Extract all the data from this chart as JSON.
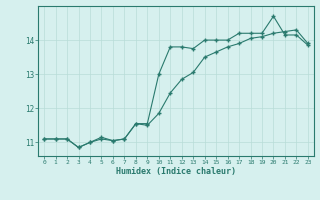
{
  "line1_x": [
    0,
    1,
    2,
    3,
    4,
    5,
    6,
    7,
    8,
    9,
    10,
    11,
    12,
    13,
    14,
    15,
    16,
    17,
    18,
    19,
    20,
    21,
    22,
    23
  ],
  "line1_y": [
    11.1,
    11.1,
    11.1,
    10.85,
    11.0,
    11.1,
    11.05,
    11.1,
    11.55,
    11.55,
    13.0,
    13.8,
    13.8,
    13.75,
    14.0,
    14.0,
    14.0,
    14.2,
    14.2,
    14.2,
    14.7,
    14.15,
    14.15,
    13.85
  ],
  "line2_x": [
    0,
    1,
    2,
    3,
    4,
    5,
    6,
    7,
    8,
    9,
    10,
    11,
    12,
    13,
    14,
    15,
    16,
    17,
    18,
    19,
    20,
    21,
    22,
    23
  ],
  "line2_y": [
    11.1,
    11.1,
    11.1,
    10.85,
    11.0,
    11.15,
    11.05,
    11.1,
    11.55,
    11.5,
    11.85,
    12.45,
    12.85,
    13.05,
    13.5,
    13.65,
    13.8,
    13.9,
    14.05,
    14.1,
    14.2,
    14.25,
    14.3,
    13.9
  ],
  "line_color": "#2a7a6e",
  "bg_color": "#d6f0ee",
  "grid_color": "#b8ddd8",
  "xlabel": "Humidex (Indice chaleur)",
  "ylim": [
    10.6,
    15.0
  ],
  "xlim": [
    -0.5,
    23.5
  ],
  "yticks": [
    11,
    12,
    13,
    14
  ],
  "xticks": [
    0,
    1,
    2,
    3,
    4,
    5,
    6,
    7,
    8,
    9,
    10,
    11,
    12,
    13,
    14,
    15,
    16,
    17,
    18,
    19,
    20,
    21,
    22,
    23
  ]
}
